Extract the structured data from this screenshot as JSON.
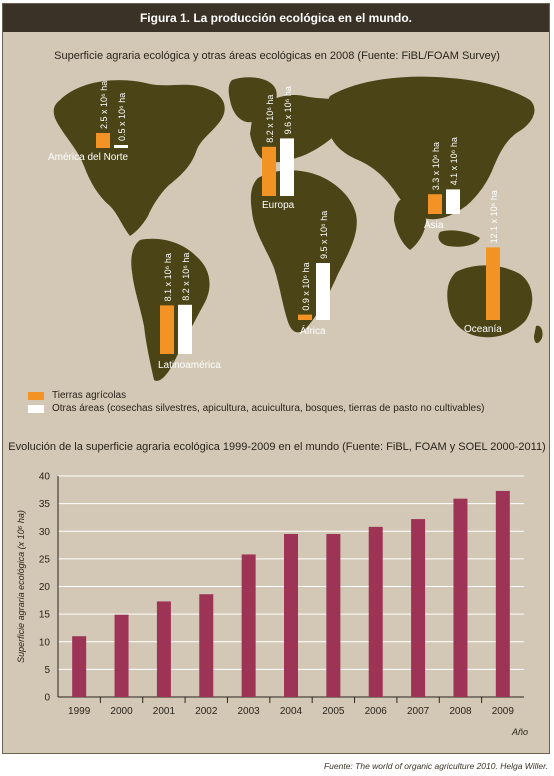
{
  "figure_title": "Figura 1. La producción ecológica en el mundo.",
  "map": {
    "title": "Superficie agraria ecológica y otras áreas ecológicas en 2008 (Fuente: FiBL/FOAM Survey)",
    "colors": {
      "tierras": "#f39325",
      "otras": "#ffffff",
      "land": "#4b4416",
      "ocean": "#d3c8b5"
    },
    "regions": [
      {
        "name": "América del Norte",
        "tierras_label": "2.5 x 10⁶ ha",
        "otras_label": "0.5 x 10⁶ ha",
        "tierras": 2.5,
        "otras": 0.5
      },
      {
        "name": "Europa",
        "tierras_label": "8.2 x 10⁶ ha",
        "otras_label": "9.6 x 10⁶ ha",
        "tierras": 8.2,
        "otras": 9.6
      },
      {
        "name": "Asia",
        "tierras_label": "3.3 x 10⁶ ha",
        "otras_label": "4.1 x 10⁶ ha",
        "tierras": 3.3,
        "otras": 4.1
      },
      {
        "name": "Latinoamérica",
        "tierras_label": "8.1 x 10⁶ ha",
        "otras_label": "8.2 x 10⁶ ha",
        "tierras": 8.1,
        "otras": 8.2
      },
      {
        "name": "África",
        "tierras_label": "0.9 x 10⁶ ha",
        "otras_label": "9.5 x 10⁶ ha",
        "tierras": 0.9,
        "otras": 9.5
      },
      {
        "name": "Oceanía",
        "tierras_label": "12.1 x 10⁶ ha",
        "otras_label": "",
        "tierras": 12.1,
        "otras": 0
      }
    ],
    "legend": [
      {
        "label": "Tierras agrícolas",
        "color": "#f39325"
      },
      {
        "label": "Otras áreas (cosechas silvestres, apicultura, acuicultura, bosques, tierras de pasto no cultivables)",
        "color": "#ffffff"
      }
    ]
  },
  "chart_data": {
    "type": "bar",
    "title": "Evolución de la superficie agraria ecológica 1999-2009 en el mundo (Fuente: FiBL, FOAM y SOEL 2000-2011)",
    "xlabel": "Año",
    "ylabel": "Superficie agraria ecológica (x 10⁶ ha)",
    "categories": [
      "1999",
      "2000",
      "2001",
      "2002",
      "2003",
      "2004",
      "2005",
      "2006",
      "2007",
      "2008",
      "2009"
    ],
    "values": [
      11.0,
      14.9,
      17.3,
      18.6,
      25.8,
      29.5,
      29.5,
      30.8,
      32.2,
      35.9,
      37.3
    ],
    "ylim": [
      0,
      40
    ],
    "yticks": [
      0,
      5,
      10,
      15,
      20,
      25,
      30,
      35,
      40
    ],
    "grid": true,
    "bar_color": "#9d3355"
  },
  "source": "Fuente: The world of organic agriculture 2010. Helga Willer."
}
